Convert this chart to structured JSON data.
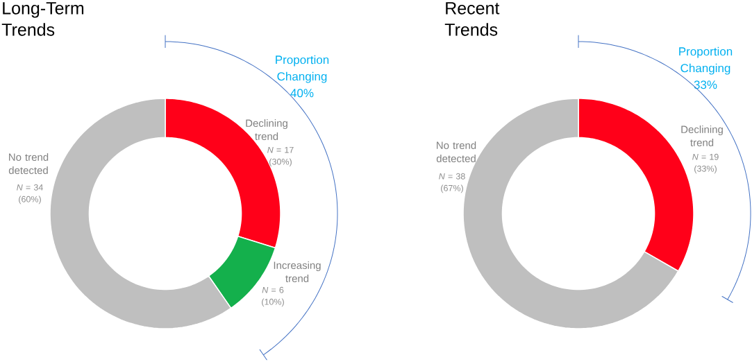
{
  "chart_data": [
    {
      "type": "donut",
      "title": "Long-Term Trends",
      "categories": [
        "Declining trend",
        "Increasing trend",
        "No trend detected"
      ],
      "values": [
        17,
        6,
        34
      ],
      "colors": [
        "#ff0019",
        "#14b04c",
        "#bfbfbf"
      ],
      "value_labels": [
        "*N* = 17 (30%)",
        "*N* = 6 (10%)",
        "*N* = 34 (60%)"
      ],
      "annotations": [
        "Proportion Changing 40%"
      ]
    },
    {
      "type": "donut",
      "title": "Recent Trends",
      "categories": [
        "Declining trend",
        "No trend detected"
      ],
      "values": [
        19,
        38
      ],
      "colors": [
        "#ff0019",
        "#bfbfbf"
      ],
      "value_labels": [
        "*N* = 19 (33%)",
        "*N* = 38 (67%)"
      ],
      "annotations": [
        "Proportion Changing 33%"
      ]
    }
  ]
}
